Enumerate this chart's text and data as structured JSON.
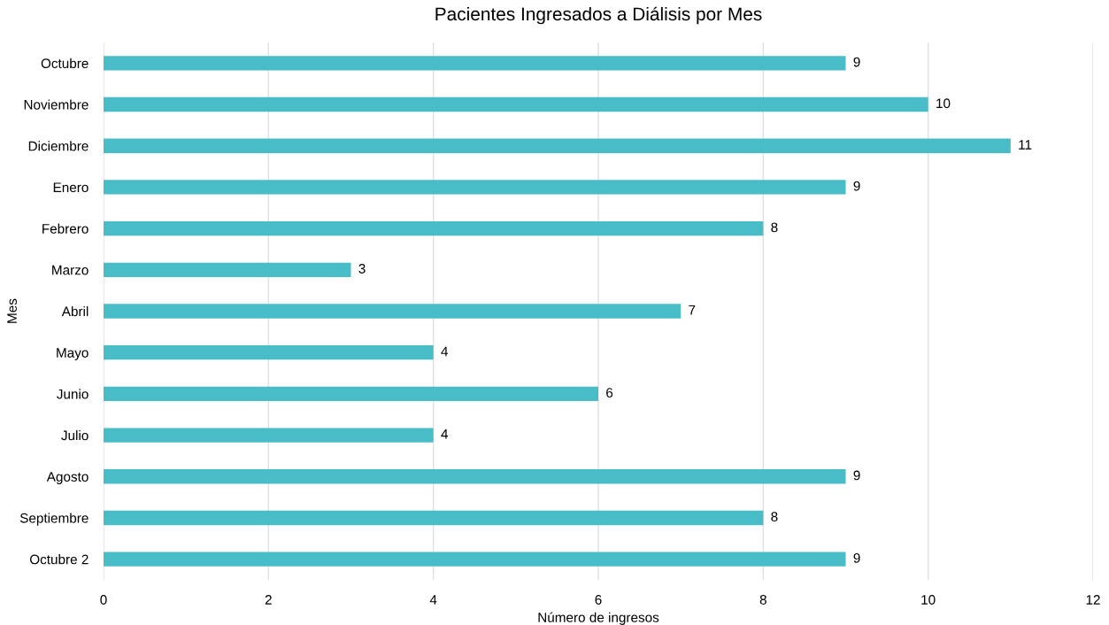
{
  "chart_data": {
    "type": "bar",
    "orientation": "horizontal",
    "title": "Pacientes Ingresados a Diálisis por Mes",
    "xlabel": "Número de ingresos",
    "ylabel": "Mes",
    "categories": [
      "Octubre",
      "Noviembre",
      "Diciembre",
      "Enero",
      "Febrero",
      "Marzo",
      "Abril",
      "Mayo",
      "Junio",
      "Julio",
      "Agosto",
      "Septiembre",
      "Octubre 2"
    ],
    "values": [
      9,
      10,
      11,
      9,
      8,
      3,
      7,
      4,
      6,
      4,
      9,
      8,
      9
    ],
    "color": "#48bdc8",
    "xlim": [
      0,
      12
    ],
    "xticks": [
      0,
      2,
      4,
      6,
      8,
      10,
      12
    ],
    "grid": "x",
    "data_labels": true
  }
}
